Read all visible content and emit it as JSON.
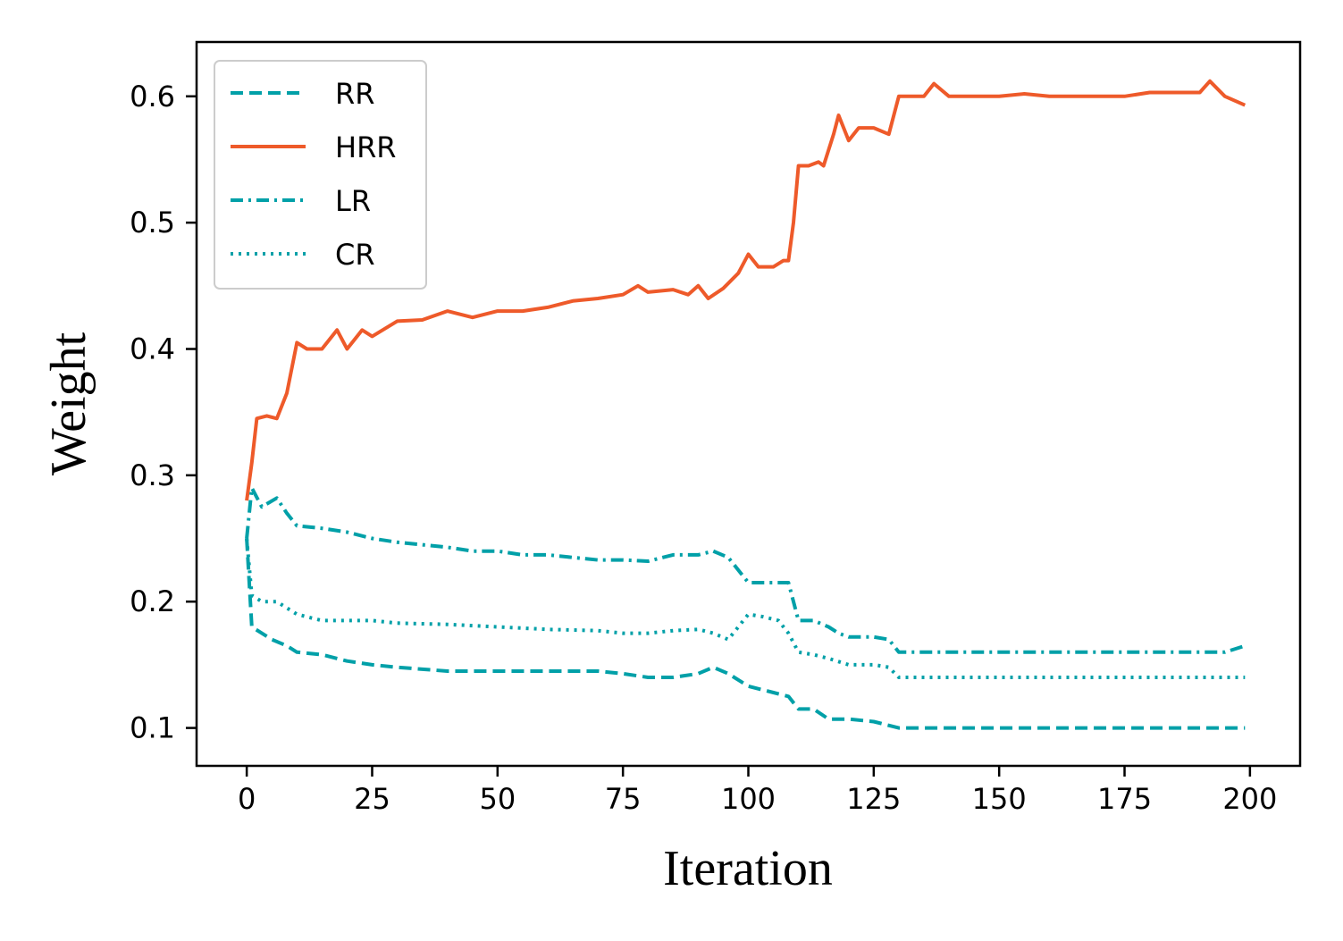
{
  "chart_data": {
    "type": "line",
    "title": "",
    "xlabel": "Iteration",
    "ylabel": "Weight",
    "xlim": [
      -10,
      210
    ],
    "ylim": [
      0.07,
      0.643
    ],
    "xticks": [
      0,
      25,
      50,
      75,
      100,
      125,
      150,
      175,
      200
    ],
    "yticks": [
      0.1,
      0.2,
      0.3,
      0.4,
      0.5,
      0.6
    ],
    "xtick_labels": [
      "0",
      "25",
      "50",
      "75",
      "100",
      "125",
      "150",
      "175",
      "200"
    ],
    "ytick_labels": [
      "0.1",
      "0.2",
      "0.3",
      "0.4",
      "0.5",
      "0.6"
    ],
    "grid": false,
    "legend_position": "top-left",
    "series": [
      {
        "name": "RR",
        "style": "dashed",
        "color": "#00A0A8",
        "x": [
          0,
          1,
          3,
          5,
          8,
          10,
          15,
          20,
          25,
          30,
          40,
          50,
          60,
          70,
          75,
          80,
          85,
          90,
          93,
          96,
          100,
          105,
          108,
          110,
          113,
          116,
          120,
          125,
          130,
          140,
          150,
          160,
          170,
          180,
          190,
          199
        ],
        "y": [
          0.25,
          0.18,
          0.175,
          0.17,
          0.165,
          0.16,
          0.158,
          0.153,
          0.15,
          0.148,
          0.145,
          0.145,
          0.145,
          0.145,
          0.143,
          0.14,
          0.14,
          0.143,
          0.148,
          0.143,
          0.133,
          0.128,
          0.125,
          0.115,
          0.115,
          0.107,
          0.107,
          0.105,
          0.1,
          0.1,
          0.1,
          0.1,
          0.1,
          0.1,
          0.1,
          0.1
        ]
      },
      {
        "name": "HRR",
        "style": "solid",
        "color": "#EE5A2A",
        "x": [
          0,
          1,
          2,
          4,
          6,
          8,
          10,
          12,
          15,
          18,
          20,
          23,
          25,
          30,
          35,
          40,
          45,
          50,
          55,
          60,
          65,
          70,
          75,
          78,
          80,
          85,
          88,
          90,
          92,
          95,
          98,
          100,
          102,
          105,
          107,
          108,
          109,
          110,
          112,
          114,
          115,
          117,
          118,
          120,
          122,
          125,
          128,
          130,
          135,
          137,
          140,
          145,
          150,
          155,
          160,
          165,
          170,
          175,
          180,
          185,
          190,
          192,
          195,
          199
        ],
        "y": [
          0.28,
          0.31,
          0.345,
          0.347,
          0.345,
          0.365,
          0.405,
          0.4,
          0.4,
          0.415,
          0.4,
          0.415,
          0.41,
          0.422,
          0.423,
          0.43,
          0.425,
          0.43,
          0.43,
          0.433,
          0.438,
          0.44,
          0.443,
          0.45,
          0.445,
          0.447,
          0.443,
          0.45,
          0.44,
          0.448,
          0.46,
          0.475,
          0.465,
          0.465,
          0.47,
          0.47,
          0.5,
          0.545,
          0.545,
          0.548,
          0.545,
          0.57,
          0.585,
          0.565,
          0.575,
          0.575,
          0.57,
          0.6,
          0.6,
          0.61,
          0.6,
          0.6,
          0.6,
          0.602,
          0.6,
          0.6,
          0.6,
          0.6,
          0.603,
          0.603,
          0.603,
          0.612,
          0.6,
          0.593
        ]
      },
      {
        "name": "LR",
        "style": "dashdot",
        "color": "#00A0A8",
        "x": [
          0,
          1,
          3,
          6,
          8,
          10,
          15,
          20,
          25,
          30,
          35,
          40,
          45,
          50,
          55,
          60,
          65,
          70,
          75,
          80,
          85,
          90,
          93,
          96,
          100,
          105,
          108,
          110,
          113,
          116,
          118,
          120,
          125,
          128,
          130,
          140,
          150,
          160,
          170,
          180,
          185,
          190,
          195,
          199
        ],
        "y": [
          0.25,
          0.29,
          0.275,
          0.282,
          0.27,
          0.26,
          0.258,
          0.255,
          0.25,
          0.247,
          0.245,
          0.243,
          0.24,
          0.24,
          0.237,
          0.237,
          0.235,
          0.233,
          0.233,
          0.232,
          0.237,
          0.237,
          0.24,
          0.235,
          0.215,
          0.215,
          0.215,
          0.185,
          0.185,
          0.18,
          0.175,
          0.172,
          0.172,
          0.17,
          0.16,
          0.16,
          0.16,
          0.16,
          0.16,
          0.16,
          0.16,
          0.16,
          0.16,
          0.165
        ]
      },
      {
        "name": "CR",
        "style": "dotted",
        "color": "#00A0A8",
        "x": [
          0,
          1,
          3,
          6,
          8,
          10,
          15,
          20,
          25,
          30,
          40,
          50,
          60,
          70,
          75,
          80,
          85,
          90,
          93,
          96,
          100,
          103,
          106,
          108,
          110,
          113,
          116,
          120,
          125,
          128,
          130,
          140,
          150,
          160,
          170,
          180,
          190,
          199
        ],
        "y": [
          0.25,
          0.205,
          0.2,
          0.2,
          0.195,
          0.19,
          0.185,
          0.185,
          0.185,
          0.183,
          0.182,
          0.18,
          0.178,
          0.177,
          0.175,
          0.175,
          0.177,
          0.178,
          0.175,
          0.17,
          0.19,
          0.188,
          0.185,
          0.175,
          0.16,
          0.158,
          0.155,
          0.15,
          0.15,
          0.148,
          0.14,
          0.14,
          0.14,
          0.14,
          0.14,
          0.14,
          0.14,
          0.14
        ]
      }
    ]
  }
}
